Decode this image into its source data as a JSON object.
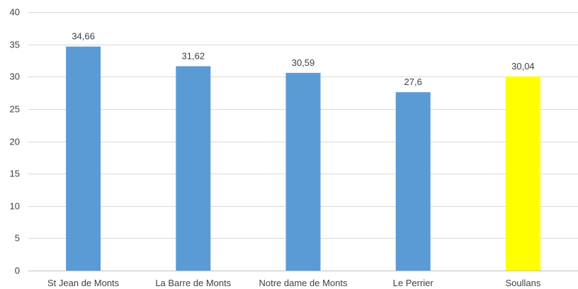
{
  "chart_data": {
    "type": "bar",
    "categories": [
      "St Jean de Monts",
      "La Barre de Monts",
      "Notre dame de Monts",
      "Le Perrier",
      "Soullans"
    ],
    "values": [
      34.66,
      31.62,
      30.59,
      27.6,
      30.04
    ],
    "data_labels": [
      "34,66",
      "31,62",
      "30,59",
      "27,6",
      "30,04"
    ],
    "bar_colors": [
      "#5b9bd5",
      "#5b9bd5",
      "#5b9bd5",
      "#5b9bd5",
      "#ffff00"
    ],
    "ylim": [
      0,
      40
    ],
    "yticks": [
      0,
      5,
      10,
      15,
      20,
      25,
      30,
      35,
      40
    ],
    "grid": true,
    "title": "",
    "xlabel": "",
    "ylabel": ""
  }
}
